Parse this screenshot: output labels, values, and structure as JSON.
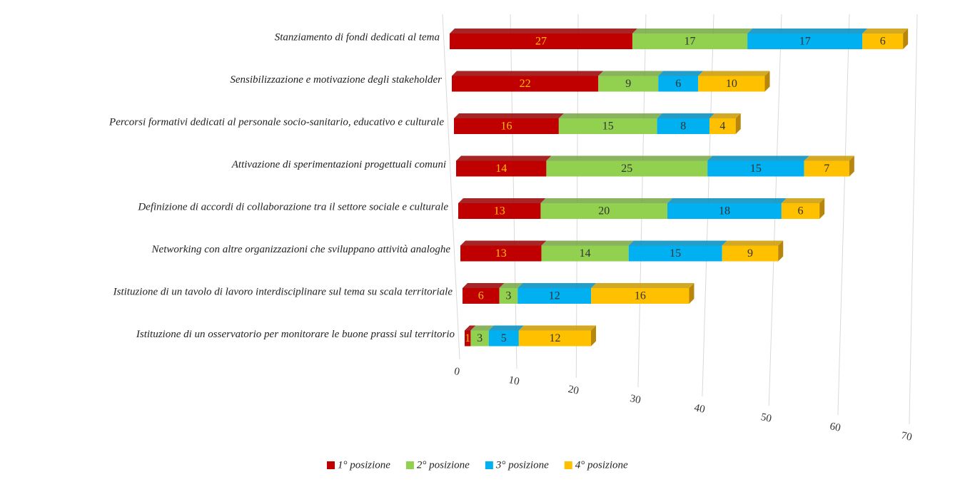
{
  "chart_data": {
    "type": "bar",
    "categories": [
      "Stanziamento di fondi dedicati al tema",
      "Sensibilizzazione e motivazione degli stakeholder",
      "Percorsi formativi dedicati al personale socio-sanitario, educativo e culturale",
      "Attivazione di sperimentazioni progettuali comuni",
      "Definizione di accordi di collaborazione tra il settore sociale e culturale",
      "Networking con altre organizzazioni che sviluppano attività analoghe",
      "Istituzione di un tavolo di lavoro interdisciplinare sul tema su scala territoriale",
      "Istituzione di un osservatorio per monitorare le buone prassi sul territorio"
    ],
    "series": [
      {
        "name": "1° posizione",
        "color": "#c00000",
        "values": [
          27,
          22,
          16,
          14,
          13,
          13,
          6,
          1
        ]
      },
      {
        "name": "2° posizione",
        "color": "#92d050",
        "values": [
          17,
          9,
          15,
          25,
          20,
          14,
          3,
          3
        ]
      },
      {
        "name": "3° posizione",
        "color": "#00b0f0",
        "values": [
          17,
          6,
          8,
          15,
          18,
          15,
          12,
          5
        ]
      },
      {
        "name": "4° posizione",
        "color": "#ffc000",
        "values": [
          6,
          10,
          4,
          7,
          6,
          9,
          16,
          12
        ]
      }
    ],
    "xlim": [
      0,
      70
    ],
    "xticks": [
      0,
      10,
      20,
      30,
      40,
      50,
      60,
      70
    ],
    "grid": true,
    "legend": "bottom"
  }
}
